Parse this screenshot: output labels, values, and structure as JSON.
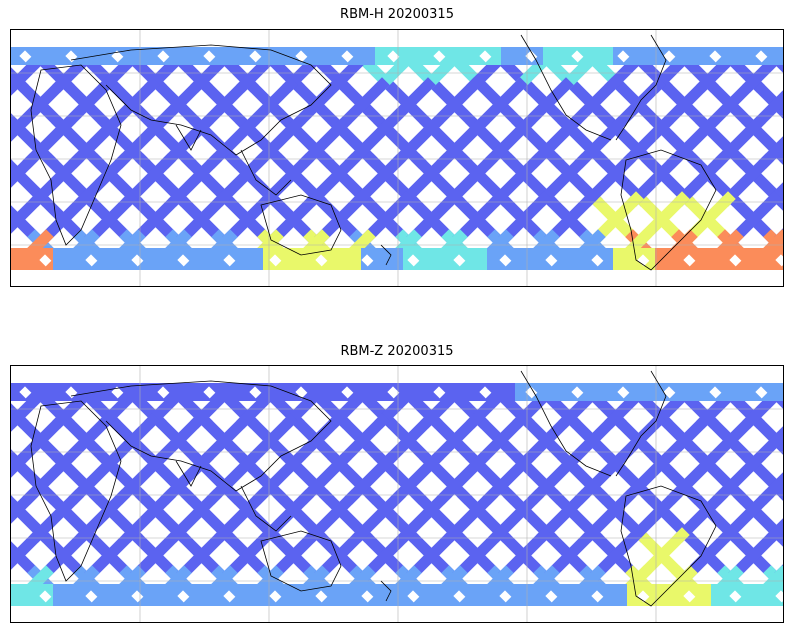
{
  "figure": {
    "panels": [
      {
        "title": "RBM-H 20200315"
      },
      {
        "title": "RBM-Z 20200315"
      }
    ]
  },
  "colors": {
    "low": "#5b63f0",
    "low_mid": "#6aa3f7",
    "mid": "#6fe6e6",
    "mid_high": "#e9f86a",
    "high": "#fb8c5a",
    "coastline": "#000000",
    "grid": "#b0b0b0"
  }
}
